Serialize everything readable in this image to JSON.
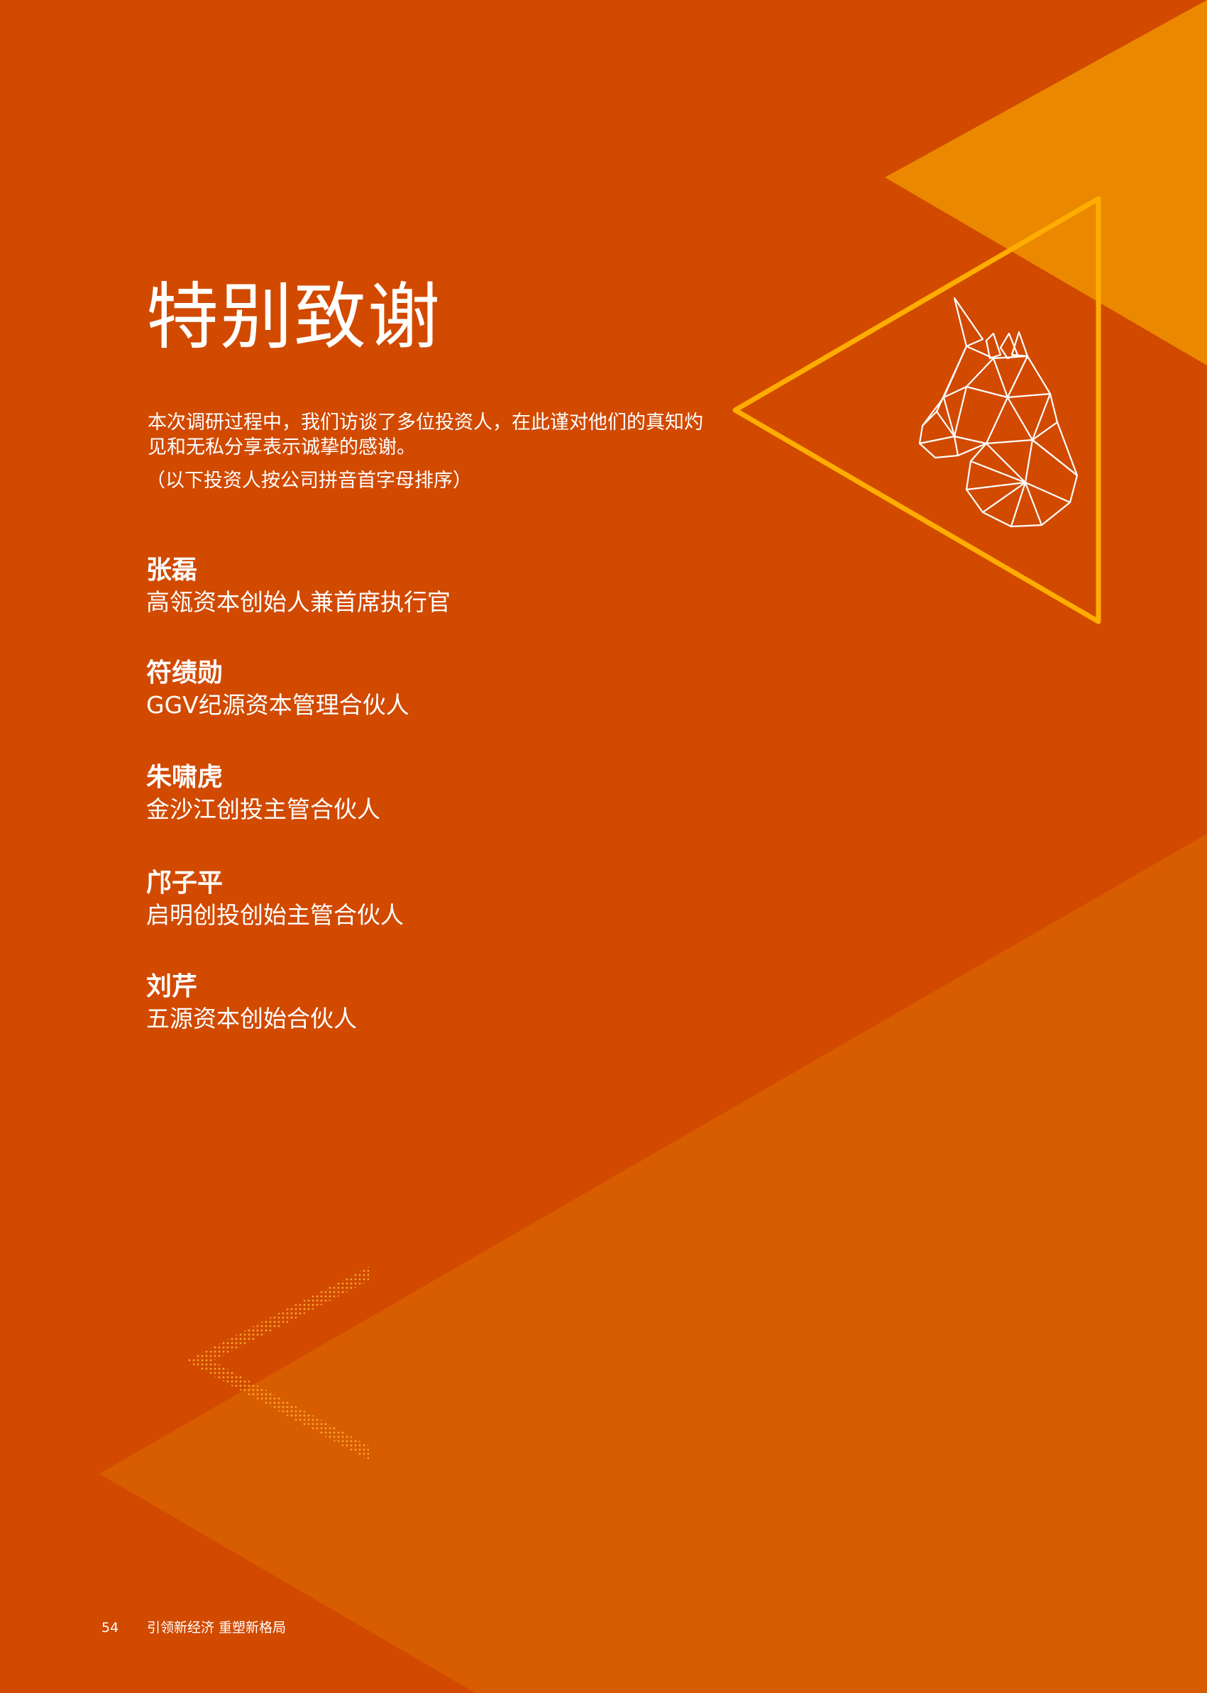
{
  "page": {
    "title": "特别致谢",
    "intro": "本次调研过程中，我们访谈了多位投资人，在此谨对他们的真知灼见和无私分享表示诚挚的感谢。",
    "note": "（以下投资人按公司拼音首字母排序）"
  },
  "people": [
    {
      "name": "张磊",
      "title": "高瓴资本创始人兼首席执行官"
    },
    {
      "name": "符绩勋",
      "title": "GGV纪源资本管理合伙人"
    },
    {
      "name": "朱啸虎",
      "title": "金沙江创投主管合伙人"
    },
    {
      "name": "邝子平",
      "title": "启明创投创始主管合伙人"
    },
    {
      "name": "刘芹",
      "title": "五源资本创始合伙人"
    }
  ],
  "footer": {
    "page_number": "54",
    "publication": "引领新经济 重塑新格局"
  },
  "colors": {
    "background": "#d14a00",
    "light_triangle": "#d85c00",
    "top_triangle": "#ec8a00",
    "outline": "#ffad00",
    "text": "#ffffff"
  },
  "icons": {
    "unicorn": "unicorn-icon",
    "chevron": "chevron-left-icon"
  }
}
